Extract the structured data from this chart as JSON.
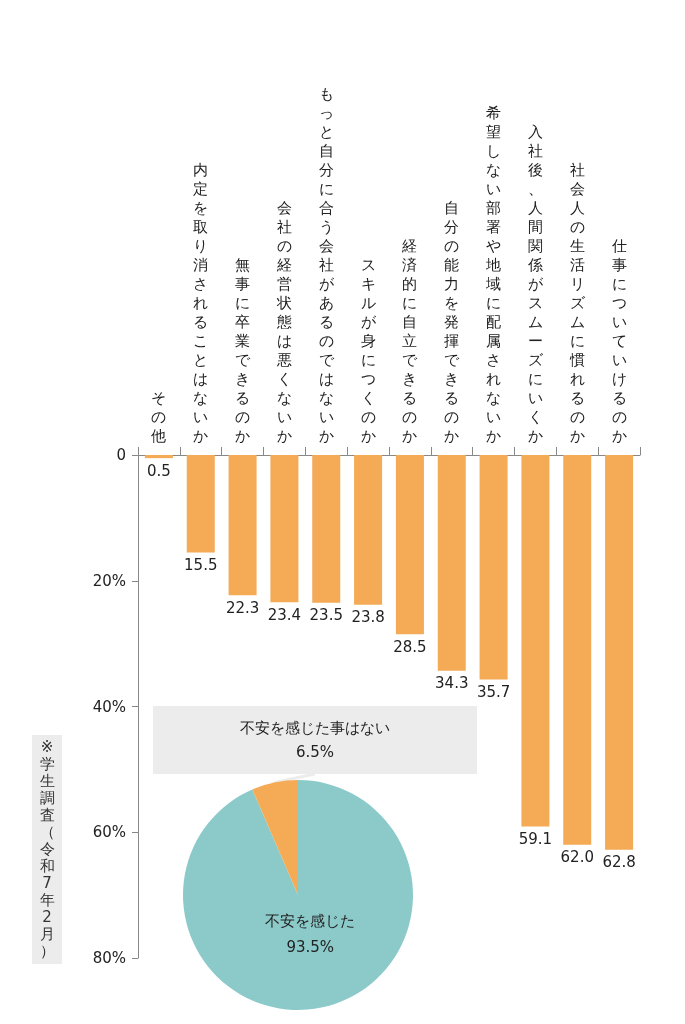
{
  "chart_data": [
    {
      "type": "bar",
      "categories": [
        "その他",
        "内定を取り消されることはないか",
        "無事に卒業できるのか",
        "会社の経営状態は悪くないか",
        "もっと自分に合う会社があるのではないか",
        "スキルが身につくのか",
        "経済的に自立できるのか",
        "自分の能力を発揮できるのか",
        "希望しない部署や地域に配属されないか",
        "入社後、人間関係がスムーズにいくか",
        "社会人の生活リズムに慣れるのか",
        "仕事についていけるのか"
      ],
      "values": [
        0.5,
        15.5,
        22.3,
        23.4,
        23.5,
        23.8,
        28.5,
        34.3,
        35.7,
        59.1,
        62.0,
        62.8
      ],
      "value_labels": [
        "0.5",
        "15.5",
        "22.3",
        "23.4",
        "23.5",
        "23.8",
        "28.5",
        "34.3",
        "35.7",
        "59.1",
        "62.0",
        "62.8"
      ],
      "color": "#f5aa55",
      "ylim": [
        80,
        0
      ],
      "yticks": [
        0,
        {
          "value": 20,
          "label": "20%"
        },
        {
          "value": 40,
          "label": "40%"
        },
        {
          "value": 60,
          "label": "60%"
        },
        {
          "value": 80,
          "label": "80%"
        }
      ],
      "grid": false,
      "legend": false,
      "annotations": [
        "※学生調査（令和7年2月）"
      ]
    },
    {
      "type": "pie",
      "categories": [
        "不安を感じた",
        "不安を感じた事はない"
      ],
      "values": [
        93.5,
        6.5
      ],
      "colors": [
        "#8ccaca",
        "#f5aa55"
      ],
      "value_labels": [
        "93.5%",
        "6.5%"
      ],
      "legend": false
    }
  ]
}
